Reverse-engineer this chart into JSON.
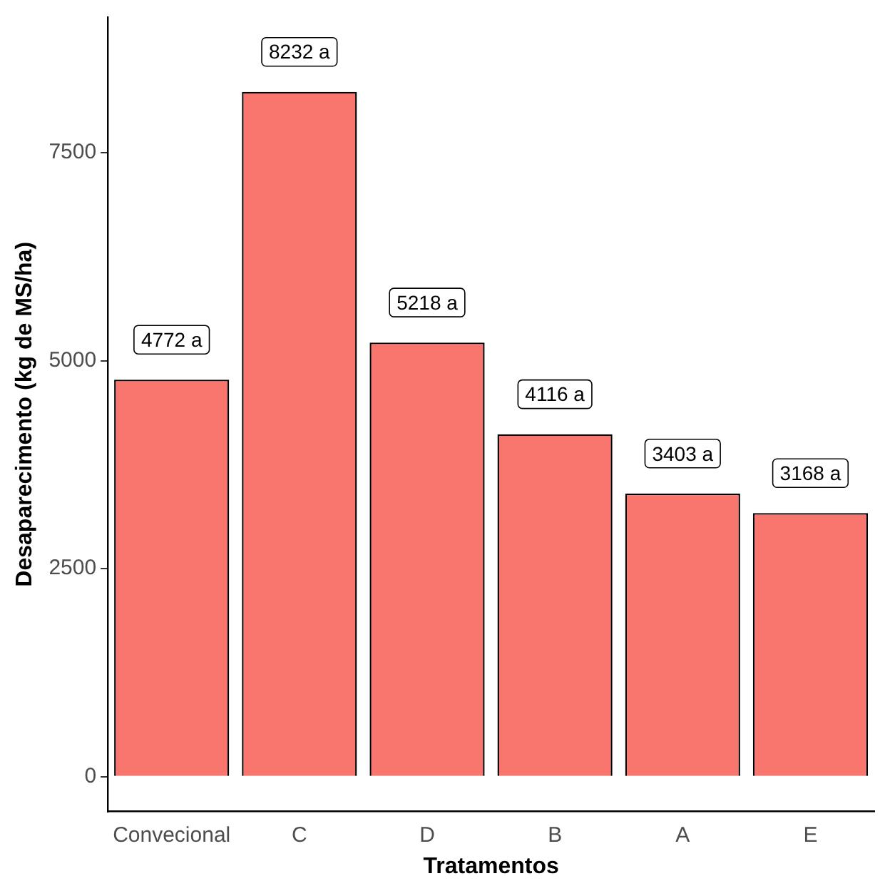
{
  "chart_data": {
    "type": "bar",
    "xlabel": "Tratamentos",
    "ylabel": "Desaparecimento (kg de MS/ha)",
    "categories": [
      "Convecional",
      "C",
      "D",
      "B",
      "A",
      "E"
    ],
    "values": [
      4772,
      8232,
      5218,
      4116,
      3403,
      3168
    ],
    "value_labels": [
      "4772 a",
      "8232 a",
      "5218 a",
      "4116 a",
      "3403 a",
      "3168 a"
    ],
    "color": "#f8766d",
    "ylim": [
      -420,
      9130
    ],
    "yticks": [
      0,
      2500,
      5000,
      7500
    ],
    "grid": false,
    "legend": false
  }
}
